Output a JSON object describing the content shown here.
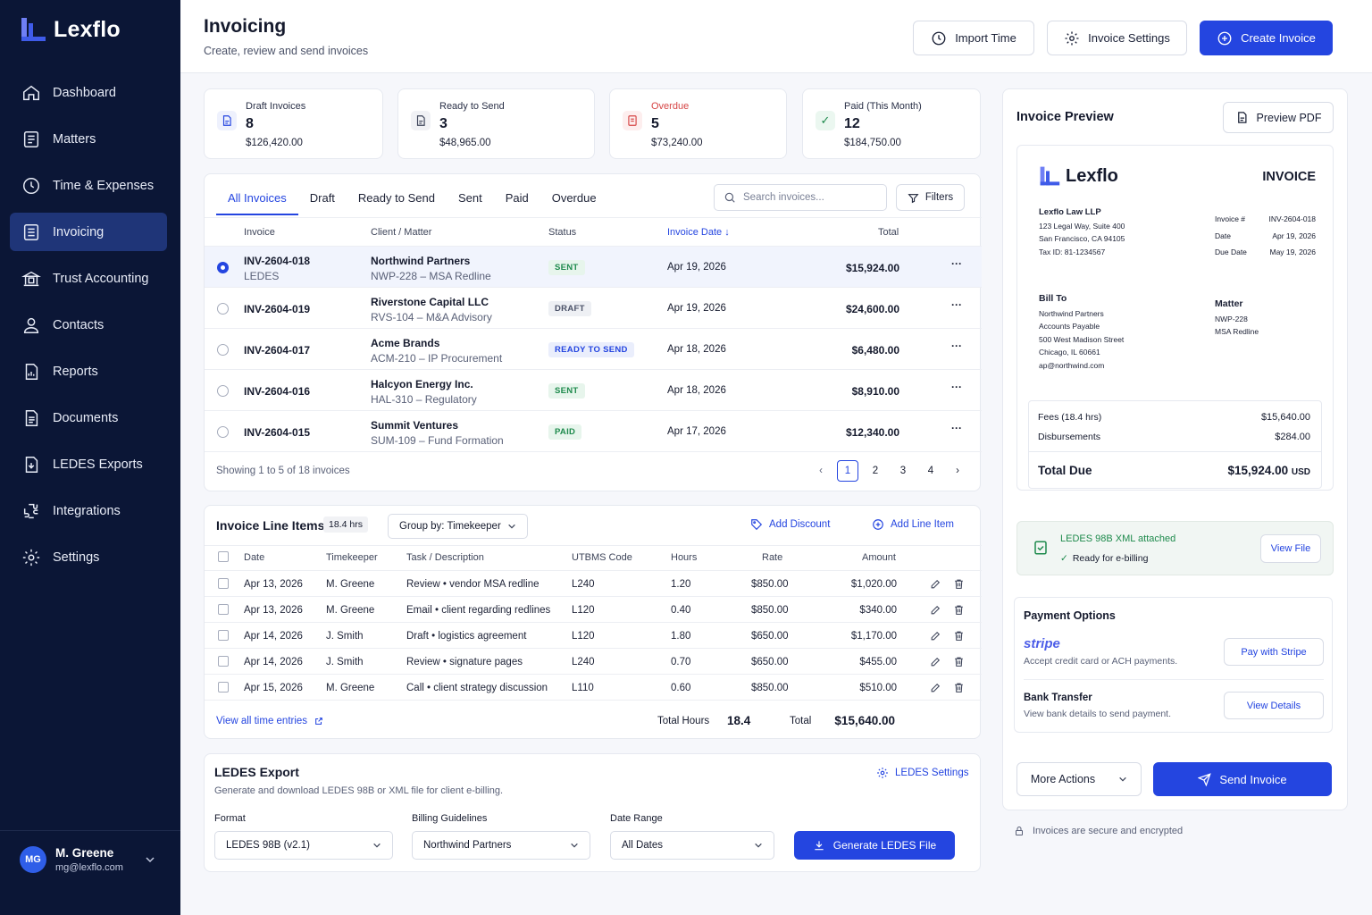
{
  "app": {
    "name": "Lexflo"
  },
  "sidebar": {
    "items": [
      {
        "label": "Dashboard",
        "icon": "home-icon"
      },
      {
        "label": "Matters",
        "icon": "document-icon"
      },
      {
        "label": "Time & Expenses",
        "icon": "clock-icon"
      },
      {
        "label": "Invoicing",
        "icon": "invoice-icon",
        "active": true
      },
      {
        "label": "Trust Accounting",
        "icon": "bank-icon"
      },
      {
        "label": "Contacts",
        "icon": "person-icon"
      },
      {
        "label": "Reports",
        "icon": "report-icon"
      },
      {
        "label": "Documents",
        "icon": "documents-icon"
      },
      {
        "label": "LEDES Exports",
        "icon": "export-icon"
      },
      {
        "label": "Integrations",
        "icon": "puzzle-icon"
      },
      {
        "label": "Settings",
        "icon": "gear-icon"
      }
    ],
    "user": {
      "initials": "MG",
      "name": "M. Greene",
      "email": "mg@lexflo.com"
    }
  },
  "header": {
    "title": "Invoicing",
    "subtitle": "Create, review and send invoices",
    "import_label": "Import Time",
    "settings_label": "Invoice Settings",
    "create_label": "Create Invoice"
  },
  "stats": [
    {
      "label": "Draft Invoices",
      "count": "8",
      "amount": "$126,420.00"
    },
    {
      "label": "Ready to Send",
      "count": "3",
      "amount": "$48,965.00"
    },
    {
      "label": "Overdue",
      "count": "5",
      "amount": "$73,240.00"
    },
    {
      "label": "Paid (This Month)",
      "count": "12",
      "amount": "$184,750.00"
    }
  ],
  "invoices": {
    "tabs": [
      "All Invoices",
      "Draft",
      "Ready to Send",
      "Sent",
      "Paid",
      "Overdue"
    ],
    "search_placeholder": "Search invoices...",
    "filters_label": "Filters",
    "columns": {
      "invoice": "Invoice",
      "client": "Client / Matter",
      "status": "Status",
      "date": "Invoice Date",
      "total": "Total"
    },
    "rows": [
      {
        "id": "INV-2604-018",
        "tag": "LEDES",
        "client": "Northwind Partners",
        "matter": "NWP-228 – MSA Redline",
        "status": "SENT",
        "date": "Apr 19, 2026",
        "total": "$15,924.00"
      },
      {
        "id": "INV-2604-019",
        "tag": "",
        "client": "Riverstone Capital LLC",
        "matter": "RVS-104 – M&A Advisory",
        "status": "DRAFT",
        "date": "Apr 19, 2026",
        "total": "$24,600.00"
      },
      {
        "id": "INV-2604-017",
        "tag": "",
        "client": "Acme Brands",
        "matter": "ACM-210 – IP Procurement",
        "status": "READY TO SEND",
        "date": "Apr 18, 2026",
        "total": "$6,480.00"
      },
      {
        "id": "INV-2604-016",
        "tag": "",
        "client": "Halcyon Energy Inc.",
        "matter": "HAL-310 – Regulatory",
        "status": "SENT",
        "date": "Apr 18, 2026",
        "total": "$8,910.00"
      },
      {
        "id": "INV-2604-015",
        "tag": "",
        "client": "Summit Ventures",
        "matter": "SUM-109 – Fund Formation",
        "status": "PAID",
        "date": "Apr 17, 2026",
        "total": "$12,340.00"
      }
    ],
    "showing": "Showing 1 to 5 of 18 invoices",
    "pages": [
      "1",
      "2",
      "3",
      "4"
    ],
    "status_colors": {
      "SENT": "#1e8a4c",
      "DRAFT": "#4b5268",
      "READY TO SEND": "#2445e0",
      "PAID": "#1e8a4c"
    }
  },
  "line_items": {
    "title": "Invoice Line Items",
    "hours_badge": "18.4 hrs",
    "group_by": "Group by: Timekeeper",
    "add_discount": "Add Discount",
    "add_line": "Add Line Item",
    "columns": {
      "date": "Date",
      "timekeeper": "Timekeeper",
      "task": "Task / Description",
      "utbms": "UTBMS Code",
      "hours": "Hours",
      "rate": "Rate",
      "amount": "Amount"
    },
    "rows": [
      {
        "date": "Apr 13, 2026",
        "tk": "M. Greene",
        "task": "Review",
        "desc": "vendor MSA redline",
        "code": "L240",
        "hours": "1.20",
        "rate": "$850.00",
        "amount": "$1,020.00"
      },
      {
        "date": "Apr 13, 2026",
        "tk": "M. Greene",
        "task": "Email",
        "desc": "client regarding redlines",
        "code": "L120",
        "hours": "0.40",
        "rate": "$850.00",
        "amount": "$340.00"
      },
      {
        "date": "Apr 14, 2026",
        "tk": "J. Smith",
        "task": "Draft",
        "desc": "logistics agreement",
        "code": "L120",
        "hours": "1.80",
        "rate": "$650.00",
        "amount": "$1,170.00"
      },
      {
        "date": "Apr 14, 2026",
        "tk": "J. Smith",
        "task": "Review",
        "desc": "signature pages",
        "code": "L240",
        "hours": "0.70",
        "rate": "$650.00",
        "amount": "$455.00"
      },
      {
        "date": "Apr 15, 2026",
        "tk": "M. Greene",
        "task": "Call",
        "desc": "client strategy discussion",
        "code": "L110",
        "hours": "0.60",
        "rate": "$850.00",
        "amount": "$510.00"
      }
    ],
    "view_all": "View all time entries",
    "total_hours_label": "Total Hours",
    "total_hours": "18.4",
    "total_label": "Total",
    "total": "$15,640.00"
  },
  "ledes": {
    "title": "LEDES Export",
    "subtitle": "Generate and download LEDES 98B or XML file for client e-billing.",
    "settings_label": "LEDES Settings",
    "format_label": "Format",
    "format_value": "LEDES 98B (v2.1)",
    "guidelines_label": "Billing Guidelines",
    "guidelines_value": "Northwind Partners",
    "range_label": "Date Range",
    "range_value": "All Dates",
    "generate_label": "Generate LEDES File"
  },
  "preview": {
    "title": "Invoice Preview",
    "pdf_label": "Preview PDF",
    "doc": {
      "brand": "Lexflo",
      "heading": "INVOICE",
      "firm": "Lexflo Law LLP",
      "address1": "123 Legal Way, Suite 400",
      "address2": "San Francisco, CA 94105",
      "tax": "Tax ID: 81-1234567",
      "meta": [
        {
          "k": "Invoice #",
          "v": "INV-2604-018"
        },
        {
          "k": "Date",
          "v": "Apr 19, 2026"
        },
        {
          "k": "Due Date",
          "v": "May 19, 2026"
        }
      ],
      "bill_to_label": "Bill To",
      "bill_to": [
        "Northwind Partners",
        "Accounts Payable",
        "500 West Madison Street",
        "Chicago, IL 60661",
        "ap@northwind.com"
      ],
      "matter_label": "Matter",
      "matter": [
        "NWP-228",
        "MSA Redline"
      ],
      "fees_label": "Fees (18.4 hrs)",
      "fees": "$15,640.00",
      "disb_label": "Disbursements",
      "disb": "$284.00",
      "total_label": "Total Due",
      "total": "$15,924.00",
      "currency": "USD"
    },
    "ledes_attached": "LEDES 98B XML attached",
    "ledes_ready": "Ready for e-billing",
    "view_file": "View File",
    "payment_title": "Payment Options",
    "stripe_logo": "stripe",
    "stripe_desc": "Accept credit card or ACH payments.",
    "stripe_btn": "Pay with Stripe",
    "bank_title": "Bank Transfer",
    "bank_desc": "View bank details to send payment.",
    "bank_btn": "View Details",
    "more_actions": "More Actions",
    "send_label": "Send Invoice",
    "secure_note": "Invoices are secure and encrypted"
  },
  "colors": {
    "navy": "#0b1636",
    "accent": "#2445e0",
    "overdue": "#d64545",
    "paid": "#1e8a4c"
  }
}
